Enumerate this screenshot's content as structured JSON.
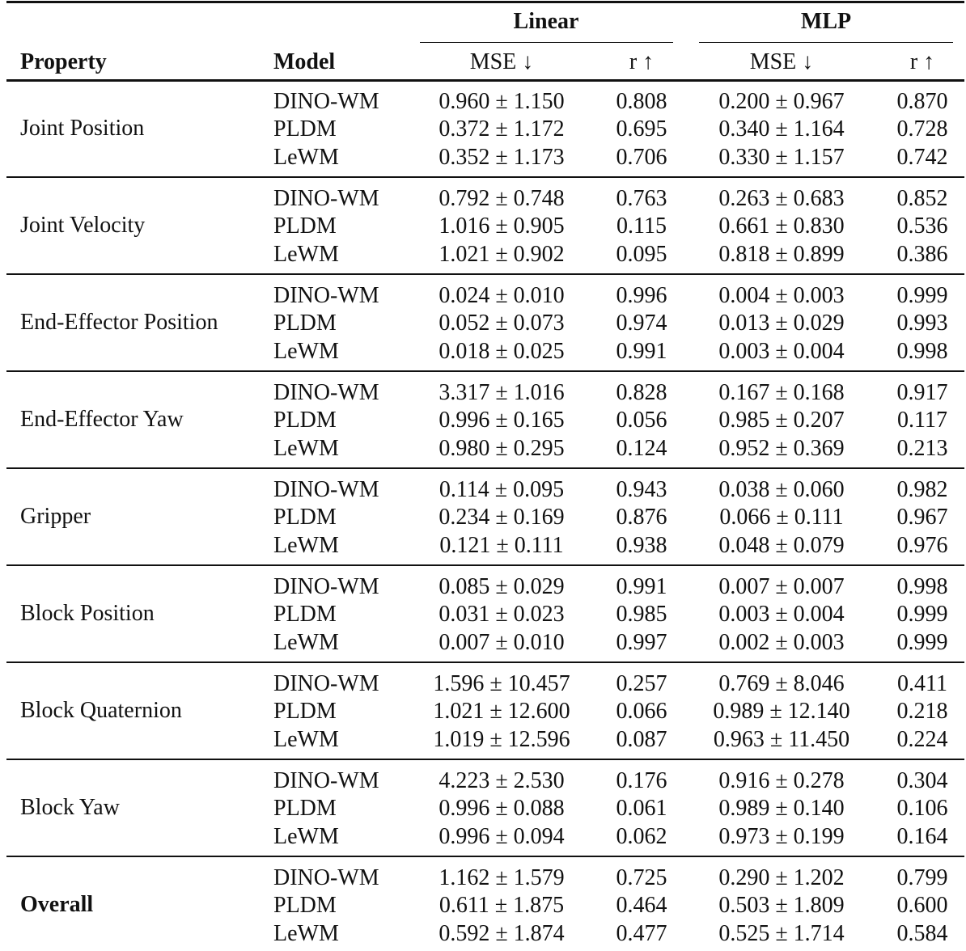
{
  "table": {
    "group_headers": [
      "Linear",
      "MLP"
    ],
    "columns": [
      "Property",
      "Model",
      "MSE ↓",
      "r ↑",
      "MSE ↓",
      "r ↑"
    ],
    "groups": [
      {
        "property": "Joint Position",
        "rows": [
          [
            "DINO-WM",
            "0.960 ± 1.150",
            "0.808",
            "0.200 ± 0.967",
            "0.870"
          ],
          [
            "PLDM",
            "0.372 ± 1.172",
            "0.695",
            "0.340 ± 1.164",
            "0.728"
          ],
          [
            "LeWM",
            "0.352 ± 1.173",
            "0.706",
            "0.330 ± 1.157",
            "0.742"
          ]
        ]
      },
      {
        "property": "Joint Velocity",
        "rows": [
          [
            "DINO-WM",
            "0.792 ± 0.748",
            "0.763",
            "0.263 ± 0.683",
            "0.852"
          ],
          [
            "PLDM",
            "1.016 ± 0.905",
            "0.115",
            "0.661 ± 0.830",
            "0.536"
          ],
          [
            "LeWM",
            "1.021 ± 0.902",
            "0.095",
            "0.818 ± 0.899",
            "0.386"
          ]
        ]
      },
      {
        "property": "End-Effector Position",
        "rows": [
          [
            "DINO-WM",
            "0.024 ± 0.010",
            "0.996",
            "0.004 ± 0.003",
            "0.999"
          ],
          [
            "PLDM",
            "0.052 ± 0.073",
            "0.974",
            "0.013 ± 0.029",
            "0.993"
          ],
          [
            "LeWM",
            "0.018 ± 0.025",
            "0.991",
            "0.003 ± 0.004",
            "0.998"
          ]
        ]
      },
      {
        "property": "End-Effector Yaw",
        "rows": [
          [
            "DINO-WM",
            "3.317 ± 1.016",
            "0.828",
            "0.167 ± 0.168",
            "0.917"
          ],
          [
            "PLDM",
            "0.996 ± 0.165",
            "0.056",
            "0.985 ± 0.207",
            "0.117"
          ],
          [
            "LeWM",
            "0.980 ± 0.295",
            "0.124",
            "0.952 ± 0.369",
            "0.213"
          ]
        ]
      },
      {
        "property": "Gripper",
        "rows": [
          [
            "DINO-WM",
            "0.114 ± 0.095",
            "0.943",
            "0.038 ± 0.060",
            "0.982"
          ],
          [
            "PLDM",
            "0.234 ± 0.169",
            "0.876",
            "0.066 ± 0.111",
            "0.967"
          ],
          [
            "LeWM",
            "0.121 ± 0.111",
            "0.938",
            "0.048 ± 0.079",
            "0.976"
          ]
        ]
      },
      {
        "property": "Block Position",
        "rows": [
          [
            "DINO-WM",
            "0.085 ± 0.029",
            "0.991",
            "0.007 ± 0.007",
            "0.998"
          ],
          [
            "PLDM",
            "0.031 ± 0.023",
            "0.985",
            "0.003 ± 0.004",
            "0.999"
          ],
          [
            "LeWM",
            "0.007 ± 0.010",
            "0.997",
            "0.002 ± 0.003",
            "0.999"
          ]
        ]
      },
      {
        "property": "Block Quaternion",
        "rows": [
          [
            "DINO-WM",
            "1.596 ± 10.457",
            "0.257",
            "0.769 ± 8.046",
            "0.411"
          ],
          [
            "PLDM",
            "1.021 ± 12.600",
            "0.066",
            "0.989 ± 12.140",
            "0.218"
          ],
          [
            "LeWM",
            "1.019 ± 12.596",
            "0.087",
            "0.963 ± 11.450",
            "0.224"
          ]
        ]
      },
      {
        "property": "Block Yaw",
        "rows": [
          [
            "DINO-WM",
            "4.223 ± 2.530",
            "0.176",
            "0.916 ± 0.278",
            "0.304"
          ],
          [
            "PLDM",
            "0.996 ± 0.088",
            "0.061",
            "0.989 ± 0.140",
            "0.106"
          ],
          [
            "LeWM",
            "0.996 ± 0.094",
            "0.062",
            "0.973 ± 0.199",
            "0.164"
          ]
        ]
      },
      {
        "property": "Overall",
        "rows": [
          [
            "DINO-WM",
            "1.162 ± 1.579",
            "0.725",
            "0.290 ± 1.202",
            "0.799"
          ],
          [
            "PLDM",
            "0.611 ± 1.875",
            "0.464",
            "0.503 ± 1.809",
            "0.600"
          ],
          [
            "LeWM",
            "0.592 ± 1.874",
            "0.477",
            "0.525 ± 1.714",
            "0.584"
          ]
        ]
      }
    ]
  }
}
